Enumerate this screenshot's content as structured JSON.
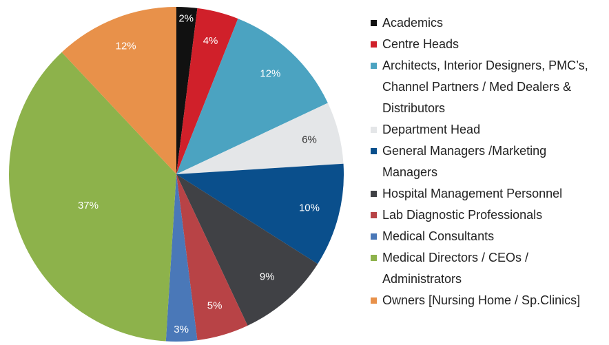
{
  "chart_data": {
    "type": "pie",
    "categories": [
      "Academics",
      "Centre Heads",
      "Architects, Interior Designers, PMC’s, Channel Partners / Med Dealers & Distributors",
      "Department Head",
      "General Managers /Marketing Managers",
      "Hospital Management Personnel",
      "Lab Diagnostic Professionals",
      "Medical Consultants",
      "Medical Directors / CEOs / Administrators",
      "Owners [Nursing Home / Sp.Clinics]"
    ],
    "values": [
      2,
      4,
      12,
      6,
      10,
      9,
      5,
      3,
      37,
      12
    ],
    "value_labels": [
      "2%",
      "4%",
      "12%",
      "6%",
      "10%",
      "9%",
      "5%",
      "3%",
      "37%",
      "12%"
    ],
    "colors": [
      "#111111",
      "#d0202a",
      "#4ba3c1",
      "#e4e6e8",
      "#0a4f8c",
      "#404145",
      "#b84346",
      "#4a78b8",
      "#8db24b",
      "#e8914a"
    ]
  }
}
